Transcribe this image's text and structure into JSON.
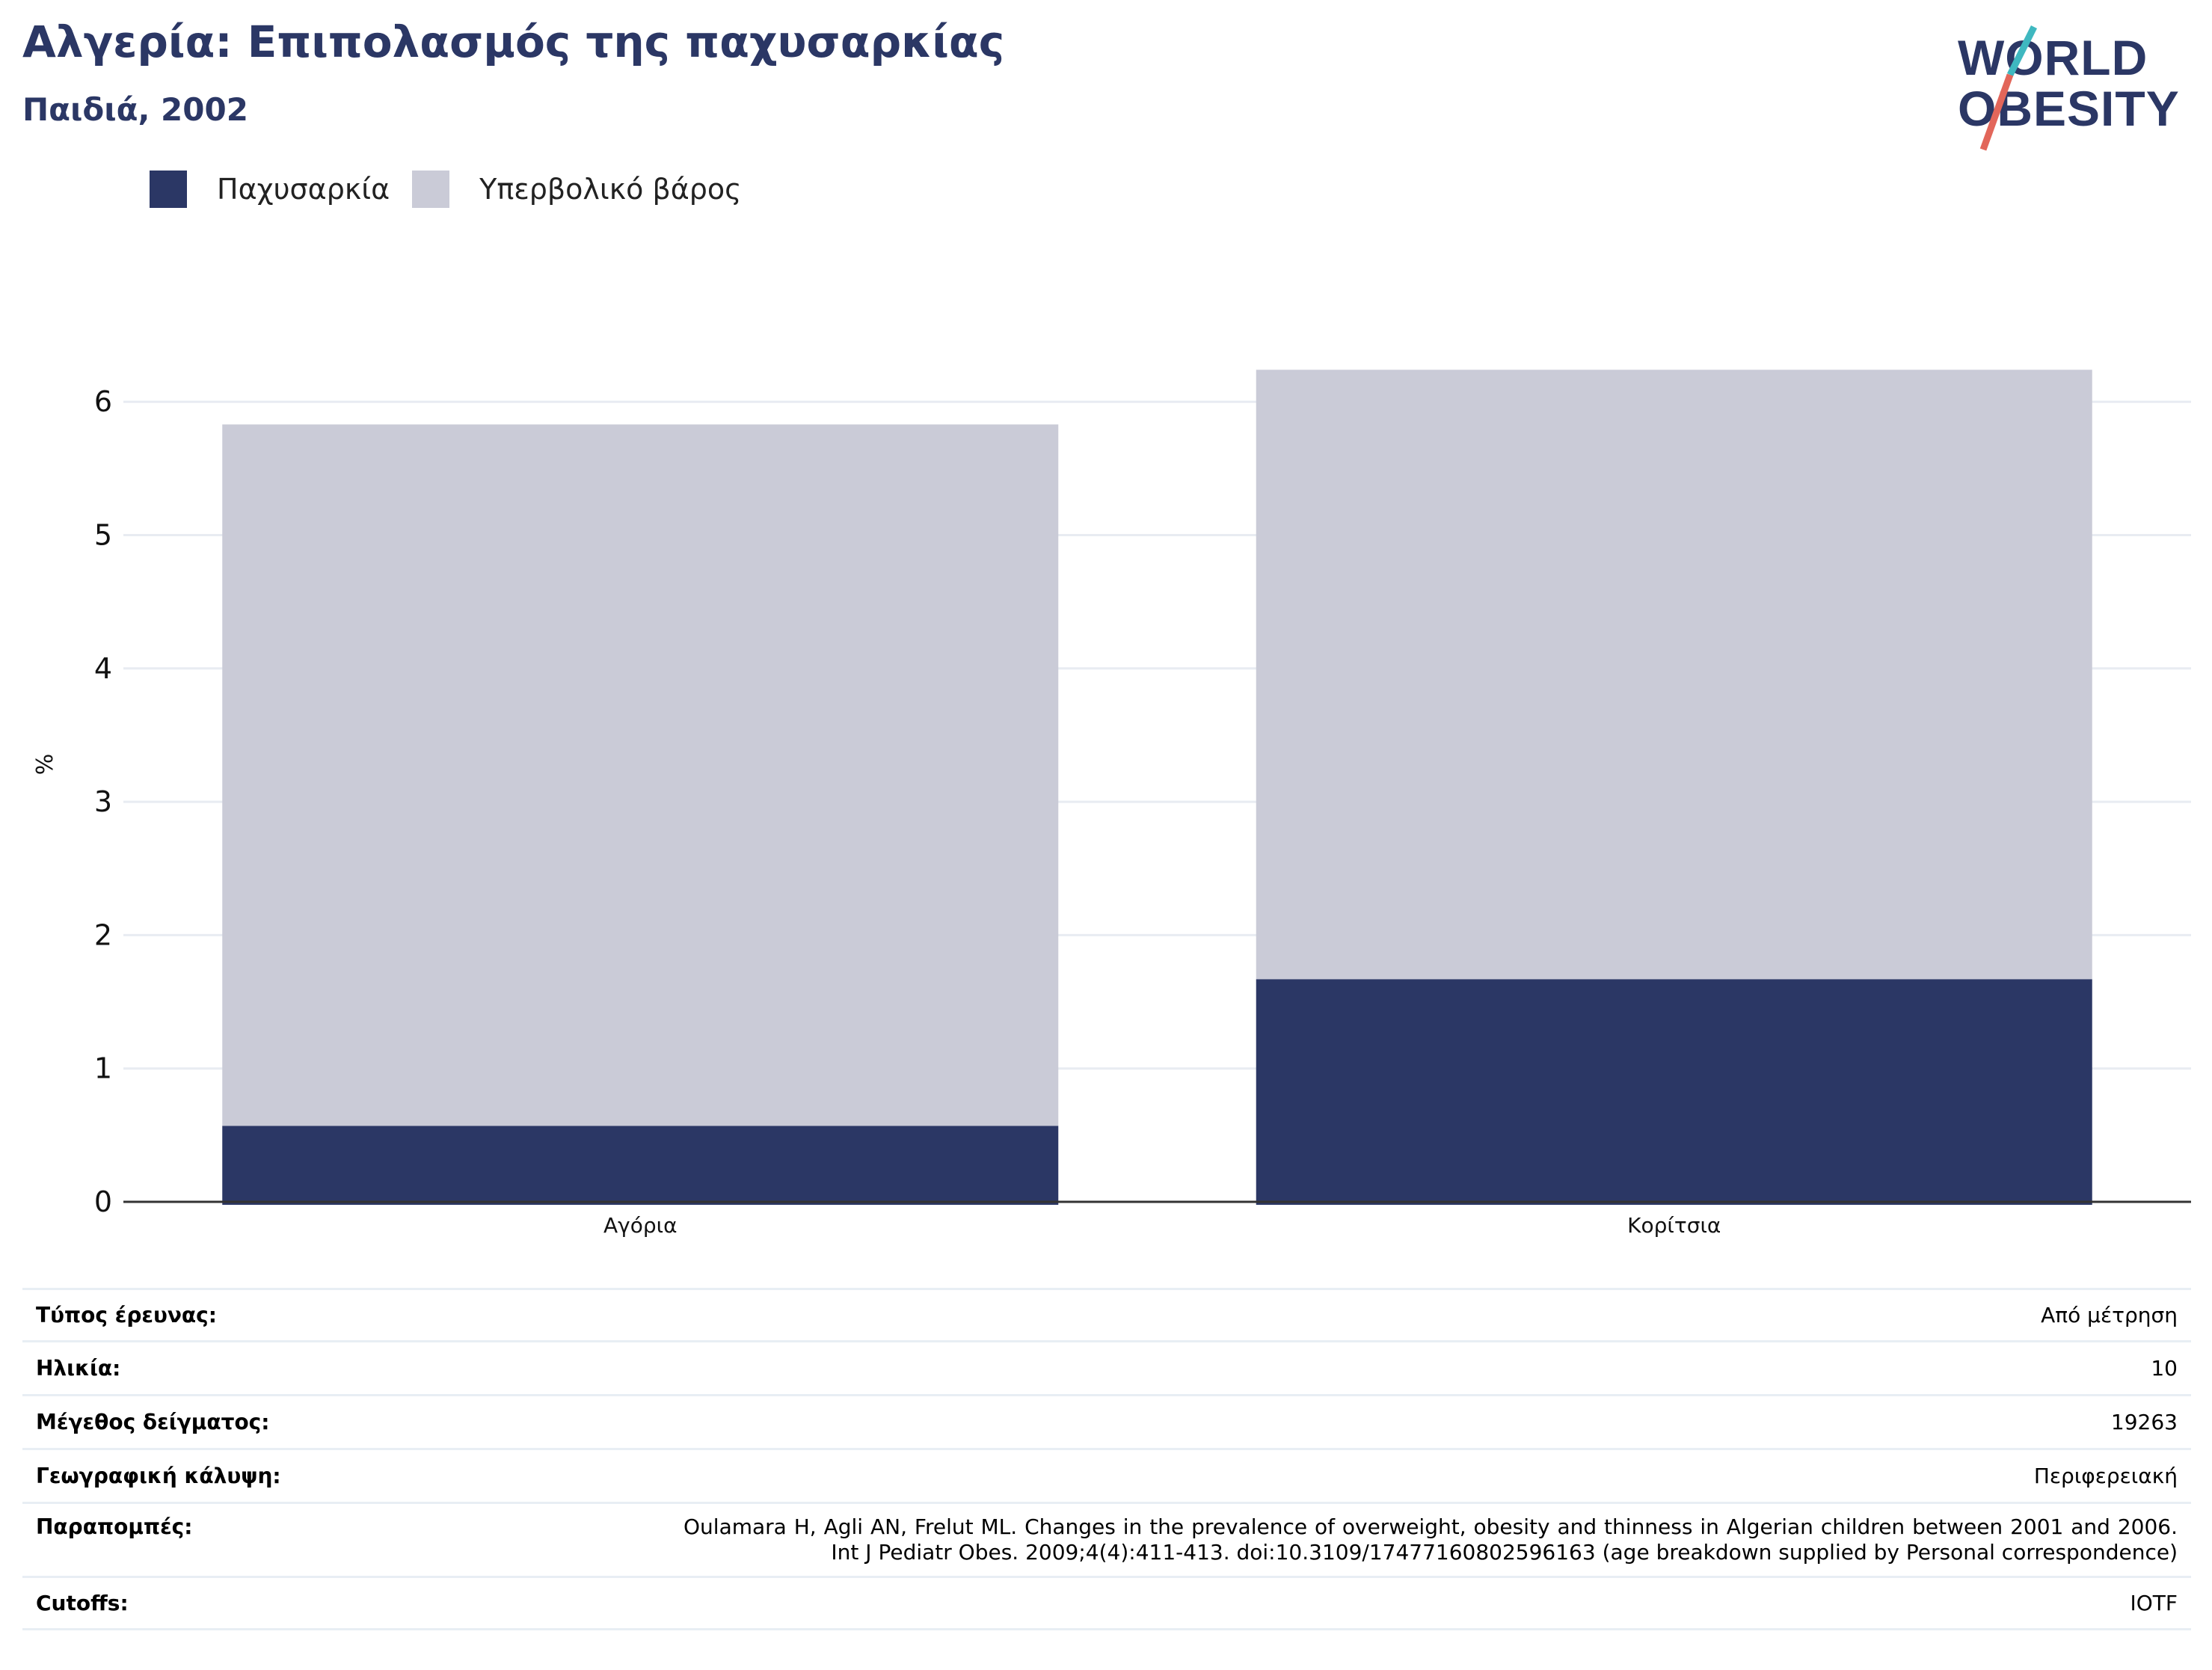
{
  "header": {
    "title": "Αλγερία: Επιπολασμός της παχυσαρκίας",
    "subtitle": "Παιδιά, 2002"
  },
  "logo": {
    "line1": "WORLD",
    "line2": "OBESITY"
  },
  "colors": {
    "obesity": "#2b3765",
    "overweight": "#cacbd7",
    "axis": "#333333",
    "grid": "#e8ecf2"
  },
  "chart_data": {
    "type": "bar",
    "stacked": true,
    "categories": [
      "Αγόρια",
      "Κορίτσια"
    ],
    "series": [
      {
        "name": "Παχυσαρκία",
        "values": [
          0.57,
          1.67
        ]
      },
      {
        "name": "Υπερβολικό βάρος",
        "values": [
          5.26,
          4.57
        ]
      }
    ],
    "ylabel": "%",
    "ylim": [
      0,
      6.5
    ],
    "yticks": [
      0,
      1,
      2,
      3,
      4,
      5,
      6
    ],
    "grid": true,
    "legend": "top-left"
  },
  "meta": {
    "rows": [
      {
        "label": "Τύπος έρευνας:",
        "value": "Από μέτρηση"
      },
      {
        "label": "Ηλικία:",
        "value": "10"
      },
      {
        "label": "Μέγεθος δείγματος:",
        "value": "19263"
      },
      {
        "label": "Γεωγραφική κάλυψη:",
        "value": "Περιφερειακή"
      },
      {
        "label": "Παραπομπές:",
        "value": "Oulamara H, Agli AN, Frelut ML. Changes in the prevalence of overweight, obesity and thinness in Algerian children between 2001 and 2006. Int J Pediatr Obes. 2009;4(4):411-413. doi:10.3109/17477160802596163 (age breakdown supplied by Personal correspondence)"
      },
      {
        "label": "Cutoffs:",
        "value": "IOTF"
      }
    ]
  }
}
